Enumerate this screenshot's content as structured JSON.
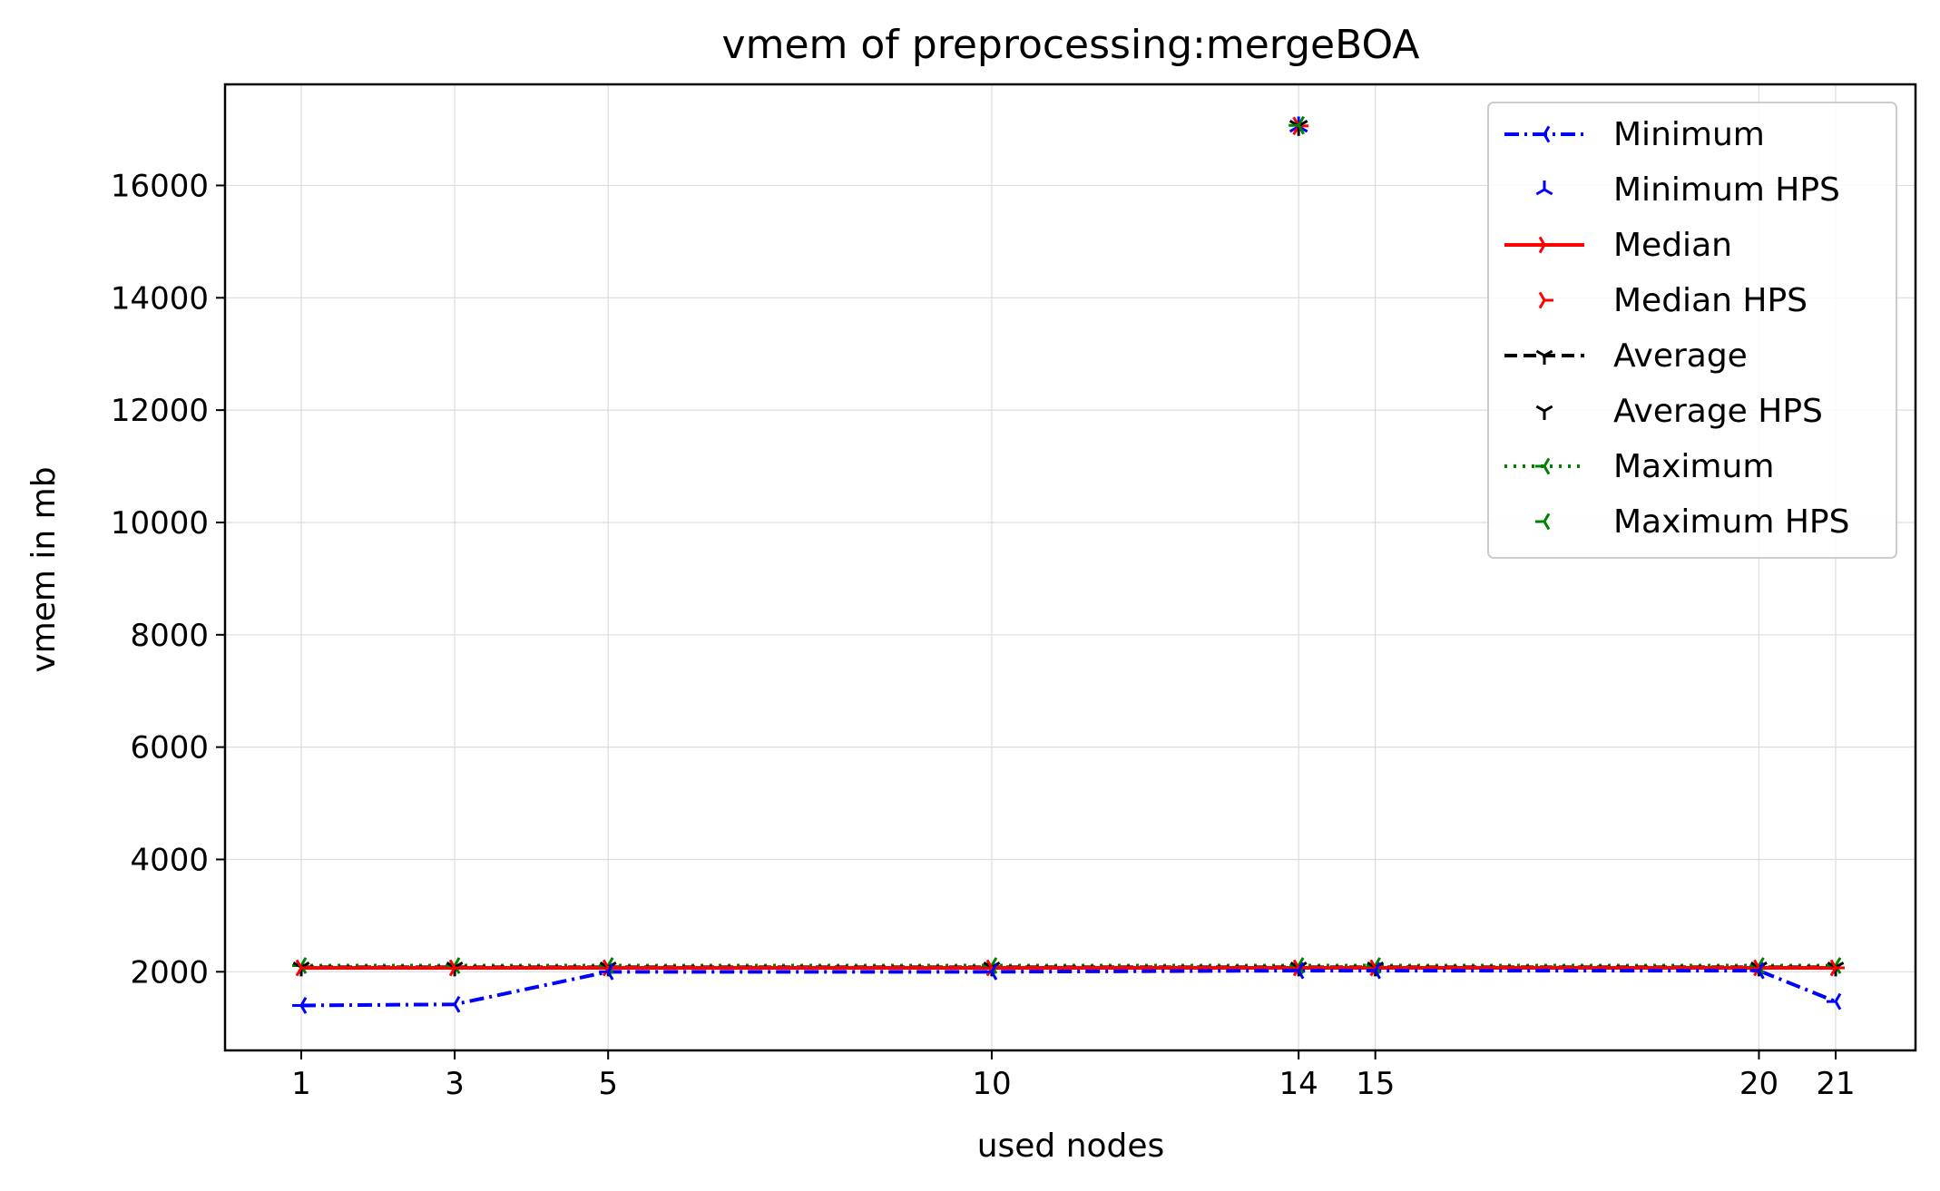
{
  "chart_data": {
    "type": "line",
    "title": "vmem of preprocessing:mergeBOA",
    "xlabel": "used nodes",
    "ylabel": "vmem in mb",
    "x": [
      1,
      3,
      5,
      10,
      14,
      15,
      20,
      21
    ],
    "xticks": [
      "1",
      "3",
      "5",
      "10",
      "14",
      "15",
      "20",
      "21"
    ],
    "yticks": [
      2000,
      4000,
      6000,
      8000,
      10000,
      12000,
      14000,
      16000
    ],
    "ylim": [
      600,
      17800
    ],
    "grid": true,
    "legend_position": "top-right",
    "series": [
      {
        "name": "Minimum",
        "values": [
          1400,
          1420,
          2000,
          2000,
          2020,
          2020,
          2020,
          1470
        ],
        "color": "#0000ff",
        "linestyle": "dashdot",
        "marker": "tri-left"
      },
      {
        "name": "Median",
        "values": [
          2070,
          2070,
          2070,
          2070,
          2070,
          2070,
          2070,
          2070
        ],
        "color": "#ff0000",
        "linestyle": "solid",
        "marker": "tri-right"
      },
      {
        "name": "Average",
        "values": [
          2080,
          2080,
          2080,
          2080,
          2080,
          2080,
          2080,
          2080
        ],
        "color": "#000000",
        "linestyle": "dashed",
        "marker": "tri-down"
      },
      {
        "name": "Maximum",
        "values": [
          2110,
          2110,
          2110,
          2110,
          2110,
          2110,
          2110,
          2110
        ],
        "color": "#008000",
        "linestyle": "dotted",
        "marker": "tri-left"
      }
    ],
    "hps_series": [
      {
        "name": "Minimum HPS",
        "x": [
          14
        ],
        "values": [
          17050
        ],
        "color": "#0000ff",
        "marker": "tri-up"
      },
      {
        "name": "Median HPS",
        "x": [
          14
        ],
        "values": [
          17060
        ],
        "color": "#ff0000",
        "marker": "tri-right"
      },
      {
        "name": "Average HPS",
        "x": [
          14
        ],
        "values": [
          17060
        ],
        "color": "#000000",
        "marker": "tri-down"
      },
      {
        "name": "Maximum HPS",
        "x": [
          14
        ],
        "values": [
          17070
        ],
        "color": "#008000",
        "marker": "tri-left"
      }
    ],
    "legend": [
      "Minimum",
      "Minimum HPS",
      "Median",
      "Median HPS",
      "Average",
      "Average HPS",
      "Maximum",
      "Maximum HPS"
    ]
  }
}
